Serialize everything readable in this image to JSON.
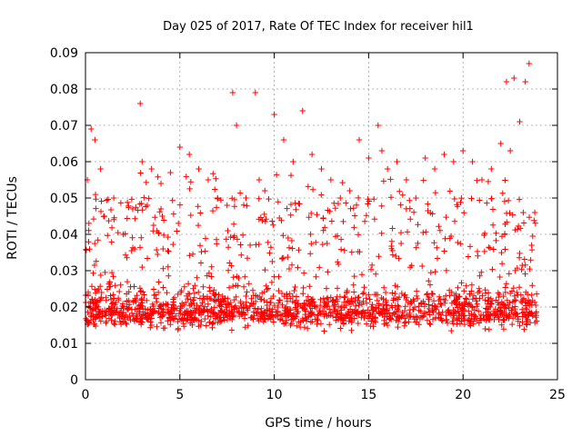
{
  "chart_data": {
    "type": "scatter",
    "title": "Day 025 of 2017, Rate Of TEC Index for receiver hil1",
    "xlabel": "GPS time / hours",
    "ylabel": "ROTI / TECUs",
    "xlim": [
      0,
      24
    ],
    "ylim": [
      0,
      0.09
    ],
    "x_ticks": [
      "0",
      "5",
      "10",
      "15",
      "20",
      "25"
    ],
    "y_ticks": [
      "0",
      "0.01",
      "0.02",
      "0.03",
      "0.04",
      "0.05",
      "0.06",
      "0.07",
      "0.08",
      "0.09"
    ],
    "grid": true,
    "legend": "none",
    "marker": "plus",
    "color": "#ff0000",
    "series": [
      {
        "x": [
          0.1,
          0.3,
          0.5,
          0.8,
          1.0,
          1.5,
          2.0,
          2.5,
          2.9,
          3.0,
          3.5,
          4.0,
          4.5,
          5.0,
          5.5,
          6.0,
          6.5,
          7.0,
          7.5,
          7.8,
          8.0,
          8.5,
          9.0,
          9.2,
          9.5,
          10.0,
          10.5,
          11.0,
          11.5,
          12.0,
          12.5,
          13.0,
          13.5,
          14.0,
          14.5,
          15.0,
          15.5,
          15.7,
          16.0,
          16.5,
          17.0,
          17.5,
          18.0,
          18.5,
          19.0,
          19.5,
          20.0,
          20.5,
          21.0,
          21.5,
          22.0,
          22.3,
          22.5,
          22.7,
          23.0,
          23.3,
          23.5,
          23.8
        ],
        "y": [
          0.055,
          0.069,
          0.066,
          0.058,
          0.045,
          0.05,
          0.04,
          0.047,
          0.076,
          0.06,
          0.058,
          0.054,
          0.057,
          0.064,
          0.062,
          0.058,
          0.055,
          0.05,
          0.048,
          0.079,
          0.07,
          0.05,
          0.079,
          0.055,
          0.052,
          0.073,
          0.066,
          0.06,
          0.074,
          0.062,
          0.058,
          0.055,
          0.05,
          0.052,
          0.066,
          0.061,
          0.07,
          0.063,
          0.058,
          0.06,
          0.055,
          0.05,
          0.061,
          0.058,
          0.062,
          0.06,
          0.063,
          0.06,
          0.055,
          0.058,
          0.065,
          0.082,
          0.063,
          0.083,
          0.071,
          0.082,
          0.087,
          0.046
        ]
      }
    ]
  }
}
